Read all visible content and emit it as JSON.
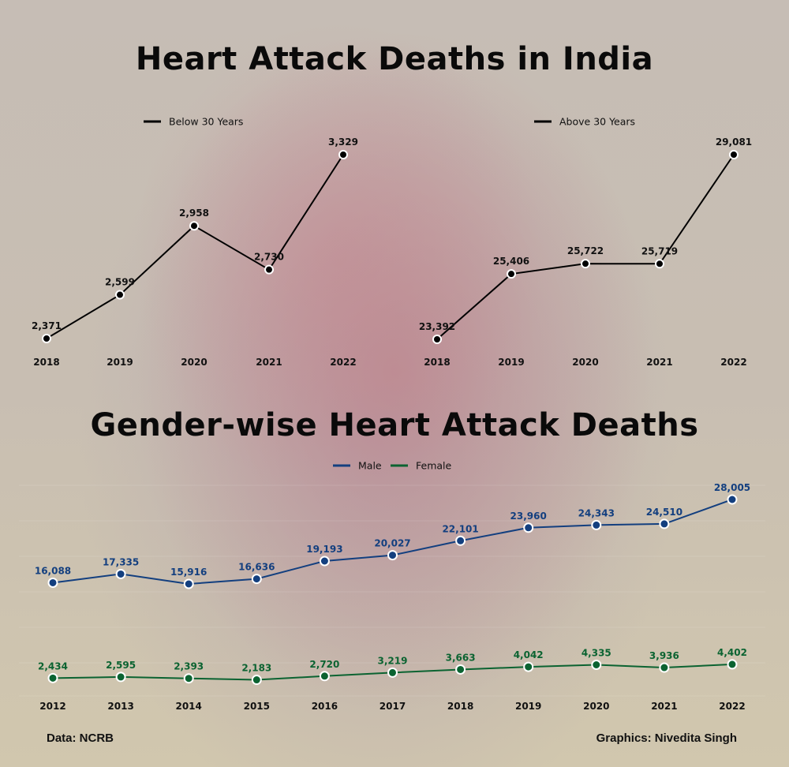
{
  "titles": {
    "main": "Heart Attack Deaths in India",
    "gender": "Gender-wise Heart Attack Deaths"
  },
  "credits": {
    "data": "Data: NCRB",
    "graphics": "Graphics: Nivedita Singh"
  },
  "colors": {
    "age_line": "#000000",
    "male": "#133f7f",
    "female": "#0b6331",
    "marker_stroke": "#ffffff"
  },
  "chart_data": [
    {
      "type": "line",
      "title": "Heart Attack Deaths in India",
      "legend": [
        "Below 30 Years"
      ],
      "categories": [
        "2018",
        "2019",
        "2020",
        "2021",
        "2022"
      ],
      "series": [
        {
          "name": "Below 30 Years",
          "values": [
            2371,
            2599,
            2958,
            2730,
            3329
          ]
        }
      ],
      "labels": [
        "2,371",
        "2,599",
        "2,958",
        "2,730",
        "3,329"
      ],
      "xlabel": "",
      "ylabel": "",
      "grid": false,
      "legend_position": "top"
    },
    {
      "type": "line",
      "title": "Heart Attack Deaths in India",
      "legend": [
        "Above 30 Years"
      ],
      "categories": [
        "2018",
        "2019",
        "2020",
        "2021",
        "2022"
      ],
      "series": [
        {
          "name": "Above 30 Years",
          "values": [
            23392,
            25406,
            25722,
            25719,
            29081
          ]
        }
      ],
      "labels": [
        "23,392",
        "25,406",
        "25,722",
        "25,719",
        "29,081"
      ],
      "xlabel": "",
      "ylabel": "",
      "grid": false,
      "legend_position": "top"
    },
    {
      "type": "line",
      "title": "Gender-wise Heart Attack Deaths",
      "legend": [
        "Male",
        "Female"
      ],
      "categories": [
        "2012",
        "2013",
        "2014",
        "2015",
        "2016",
        "2017",
        "2018",
        "2019",
        "2020",
        "2021",
        "2022"
      ],
      "series": [
        {
          "name": "Male",
          "values": [
            16088,
            17335,
            15916,
            16636,
            19193,
            20027,
            22101,
            23960,
            24343,
            24510,
            28005
          ],
          "labels": [
            "16,088",
            "17,335",
            "15,916",
            "16,636",
            "19,193",
            "20,027",
            "22,101",
            "23,960",
            "24,343",
            "24,510",
            "28,005"
          ]
        },
        {
          "name": "Female",
          "values": [
            2434,
            2595,
            2393,
            2183,
            2720,
            3219,
            3663,
            4042,
            4335,
            3936,
            4402
          ],
          "labels": [
            "2,434",
            "2,595",
            "2,393",
            "2,183",
            "2,720",
            "3,219",
            "3,663",
            "4,042",
            "4,335",
            "3,936",
            "4,402"
          ]
        }
      ],
      "xlabel": "",
      "ylabel": "",
      "grid": true,
      "legend_position": "top"
    }
  ]
}
